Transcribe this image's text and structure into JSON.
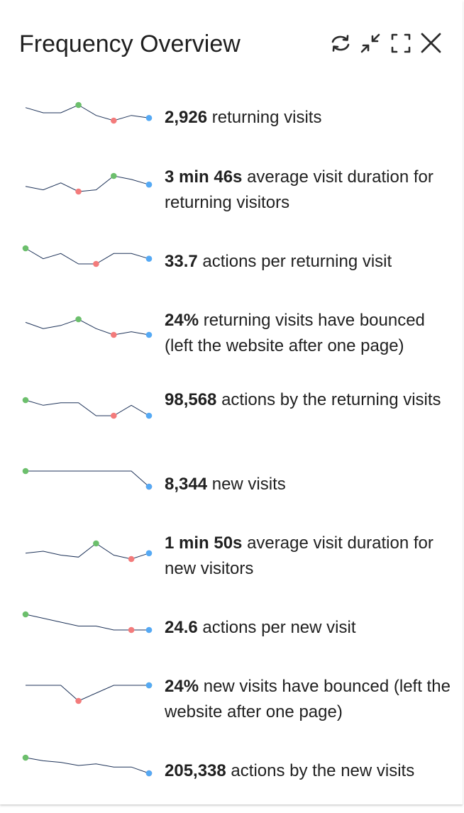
{
  "header": {
    "title": "Frequency Overview",
    "icons": [
      "refresh-icon",
      "minimise-icon",
      "maximise-icon",
      "close-icon"
    ]
  },
  "colors": {
    "line": "#1d3258",
    "max_dot": "#6cbf6c",
    "min_dot": "#f37b7b",
    "last_dot": "#55a9f4"
  },
  "metrics": [
    {
      "value": "2,926",
      "label": " returning visits",
      "sparkline": [
        8,
        6,
        6,
        9,
        5,
        3,
        5,
        4
      ],
      "max_index": 3,
      "min_index": 5
    },
    {
      "value": "3 min 46s",
      "label": " average visit duration for returning visitors",
      "sparkline": [
        4,
        2,
        6,
        1,
        2,
        10,
        8,
        5
      ],
      "max_index": 5,
      "min_index": 3
    },
    {
      "value": "33.7",
      "label": " actions per returning visit",
      "sparkline": [
        10,
        8,
        9,
        7,
        7,
        9,
        9,
        8
      ],
      "max_index": 0,
      "min_index": 4
    },
    {
      "value": "24%",
      "label": " returning visits have bounced (left the website after one page)",
      "sparkline": [
        8,
        6,
        7,
        9,
        6,
        4,
        5,
        4
      ],
      "max_index": 3,
      "min_index": 5
    },
    {
      "value": "98,568",
      "label": " actions by the returning visits",
      "sparkline": [
        10,
        8,
        9,
        9,
        4,
        4,
        8,
        4
      ],
      "max_index": 0,
      "min_index": 5
    },
    {
      "value": "8,344",
      "label": " new visits",
      "sparkline": [
        10,
        10,
        10,
        10,
        10,
        10,
        10,
        5
      ],
      "max_index": 0,
      "min_index": 7
    },
    {
      "value": "1 min 50s",
      "label": " average visit duration for new visitors",
      "sparkline": [
        5,
        6,
        4,
        3,
        10,
        4,
        2,
        5
      ],
      "max_index": 4,
      "min_index": 6
    },
    {
      "value": "24.6",
      "label": " actions per new visit",
      "sparkline": [
        10,
        9,
        8,
        7,
        7,
        6,
        6,
        6
      ],
      "max_index": 0,
      "min_index": 6
    },
    {
      "value": "24%",
      "label": " new visits have bounced (left the website after one page)",
      "sparkline": [
        6,
        6,
        6,
        4,
        5,
        6,
        6,
        6
      ],
      "max_index": 7,
      "min_index": 3
    },
    {
      "value": "205,338",
      "label": " actions by the new visits",
      "sparkline": [
        10,
        8,
        7,
        5,
        6,
        4,
        4,
        0
      ],
      "max_index": 0,
      "min_index": 7
    }
  ]
}
